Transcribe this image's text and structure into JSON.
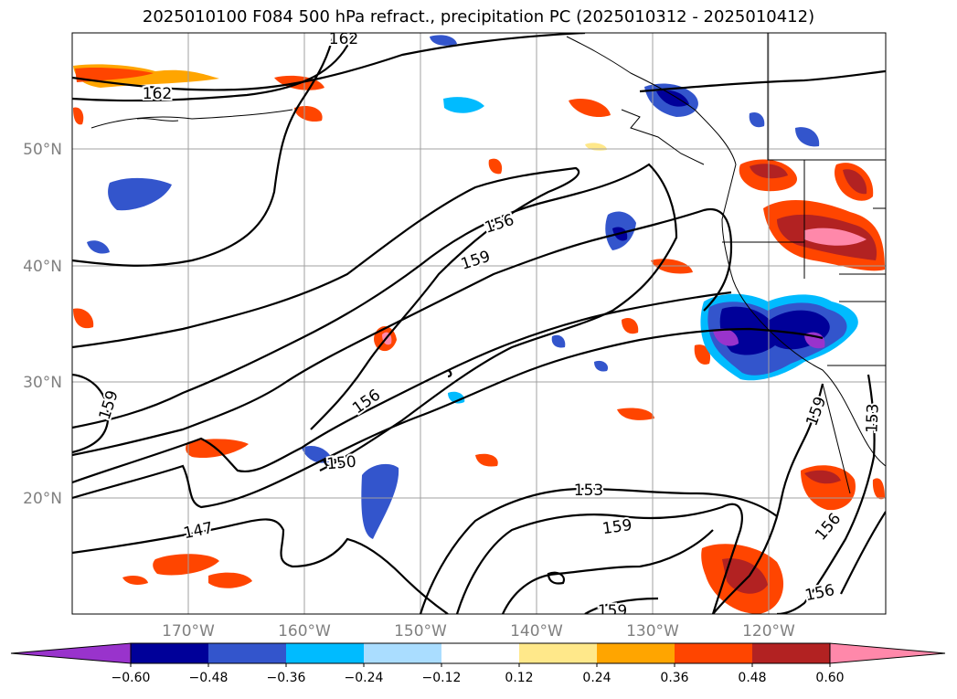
{
  "title": "2025010100 F084 500 hPa refract., precipitation PC (2025010312 - 2025010412)",
  "lat_labels": [
    "50°N",
    "40°N",
    "30°N",
    "20°N"
  ],
  "lon_labels": [
    "170°W",
    "160°W",
    "150°W",
    "140°W",
    "130°W",
    "120°W"
  ],
  "contour_labels": [
    "162",
    "162",
    "156",
    "159",
    "159",
    "156",
    "150",
    "147",
    "153",
    "159",
    "159",
    "159",
    "153",
    "156",
    "156"
  ],
  "colorbar": {
    "ticks": [
      "−0.60",
      "−0.48",
      "−0.36",
      "−0.24",
      "−0.12",
      "0.12",
      "0.24",
      "0.36",
      "0.48",
      "0.60"
    ],
    "colors": [
      "#9933cc",
      "#000099",
      "#3355cc",
      "#00bbff",
      "#aaddff",
      "#ffffff",
      "#ffe88a",
      "#ffa500",
      "#ff4500",
      "#b22222",
      "#ff88aa"
    ]
  },
  "colors": {
    "coast": "#000000",
    "grid": "#a0a0a0",
    "contour": "#000000"
  }
}
